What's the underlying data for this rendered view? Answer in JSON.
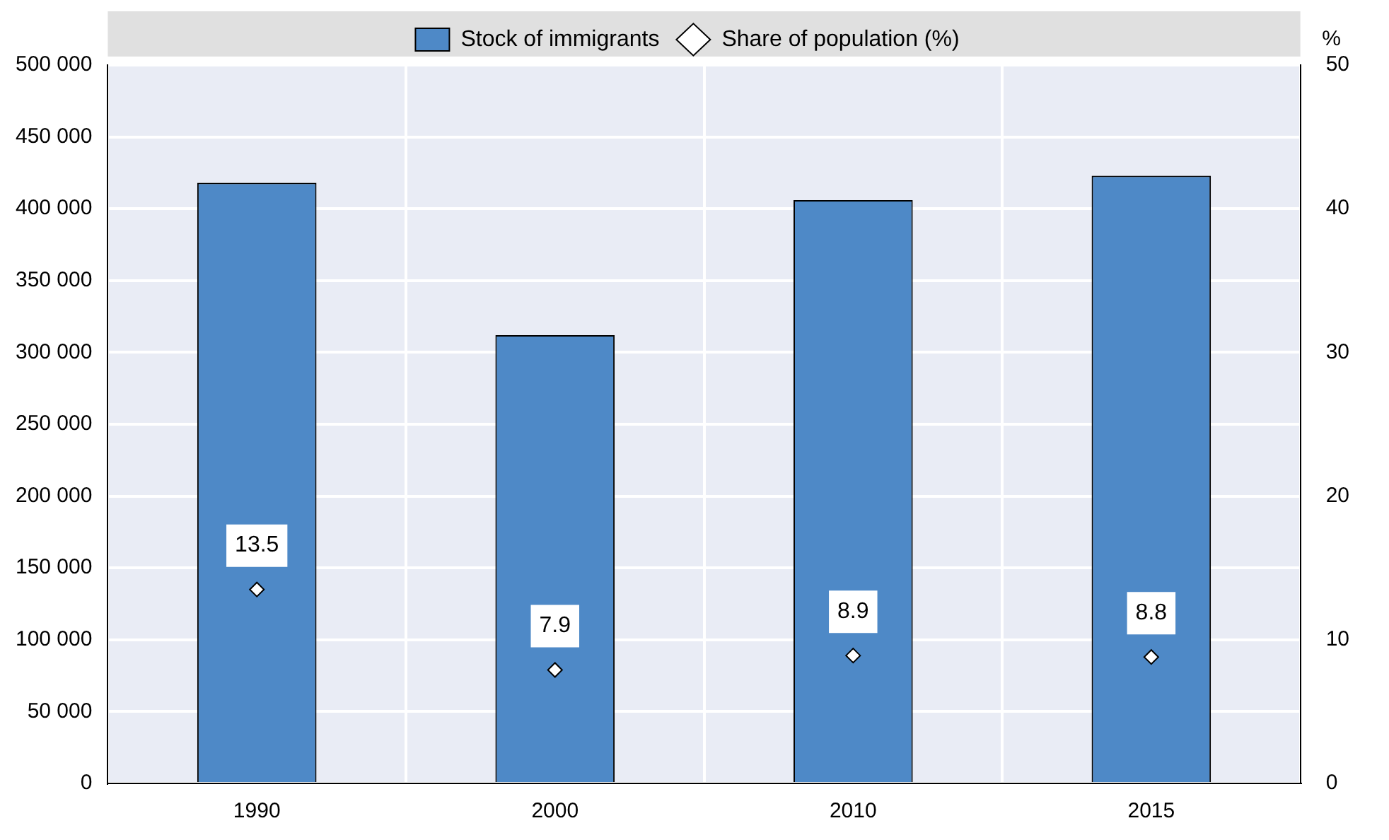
{
  "chart_data": {
    "type": "bar",
    "categories": [
      "1990",
      "2000",
      "2010",
      "2015"
    ],
    "series": [
      {
        "name": "Stock of immigrants",
        "color": "#4e89c7",
        "values": [
          418000,
          312000,
          406000,
          423000
        ]
      },
      {
        "name": "Share of population (%)",
        "type": "scatter",
        "axis": "y2",
        "color": "#ffffff",
        "marker": "diamond",
        "values": [
          13.5,
          7.9,
          8.9,
          8.8
        ],
        "data_labels": true
      }
    ],
    "ylim": [
      0,
      500000
    ],
    "yticks": [
      0,
      50000,
      100000,
      150000,
      200000,
      250000,
      300000,
      350000,
      400000,
      450000,
      500000
    ],
    "y2lim": [
      0,
      50
    ],
    "y2ticks": [
      0,
      10,
      20,
      30,
      40,
      50
    ],
    "y2label": "%",
    "grid": true,
    "legend": "top"
  }
}
